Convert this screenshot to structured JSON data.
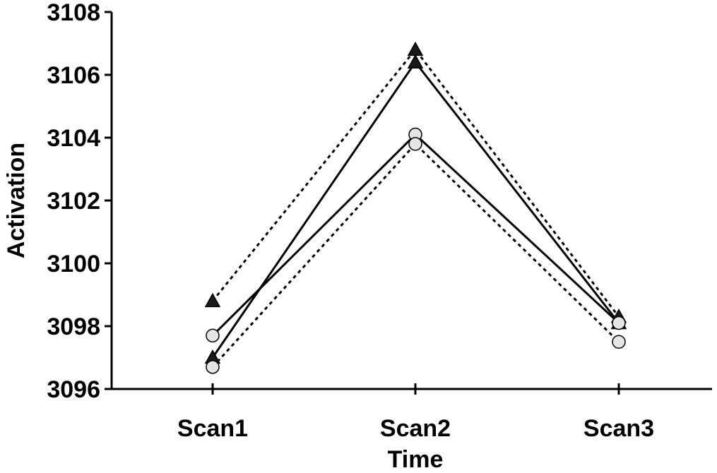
{
  "chart_data": {
    "type": "line",
    "title": "",
    "xlabel": "Time",
    "ylabel": "Activation",
    "categories": [
      "Scan1",
      "Scan2",
      "Scan3"
    ],
    "ylim": [
      3096,
      3108
    ],
    "yticks": [
      3096,
      3098,
      3100,
      3102,
      3104,
      3106,
      3108
    ],
    "grid": false,
    "legend": "none",
    "series": [
      {
        "marker": "triangle",
        "line": "solid",
        "values": [
          3097.0,
          3106.4,
          3098.1
        ]
      },
      {
        "marker": "triangle",
        "line": "dotted",
        "values": [
          3098.8,
          3106.8,
          3098.3
        ]
      },
      {
        "marker": "circle",
        "line": "solid",
        "values": [
          3097.7,
          3104.1,
          3098.1
        ]
      },
      {
        "marker": "circle",
        "line": "dotted",
        "values": [
          3096.7,
          3103.8,
          3097.5
        ]
      }
    ],
    "colors": {
      "line": "#000000",
      "triangle_fill": "#1a1a1a",
      "circle_fill": "#e6e6e6"
    }
  }
}
